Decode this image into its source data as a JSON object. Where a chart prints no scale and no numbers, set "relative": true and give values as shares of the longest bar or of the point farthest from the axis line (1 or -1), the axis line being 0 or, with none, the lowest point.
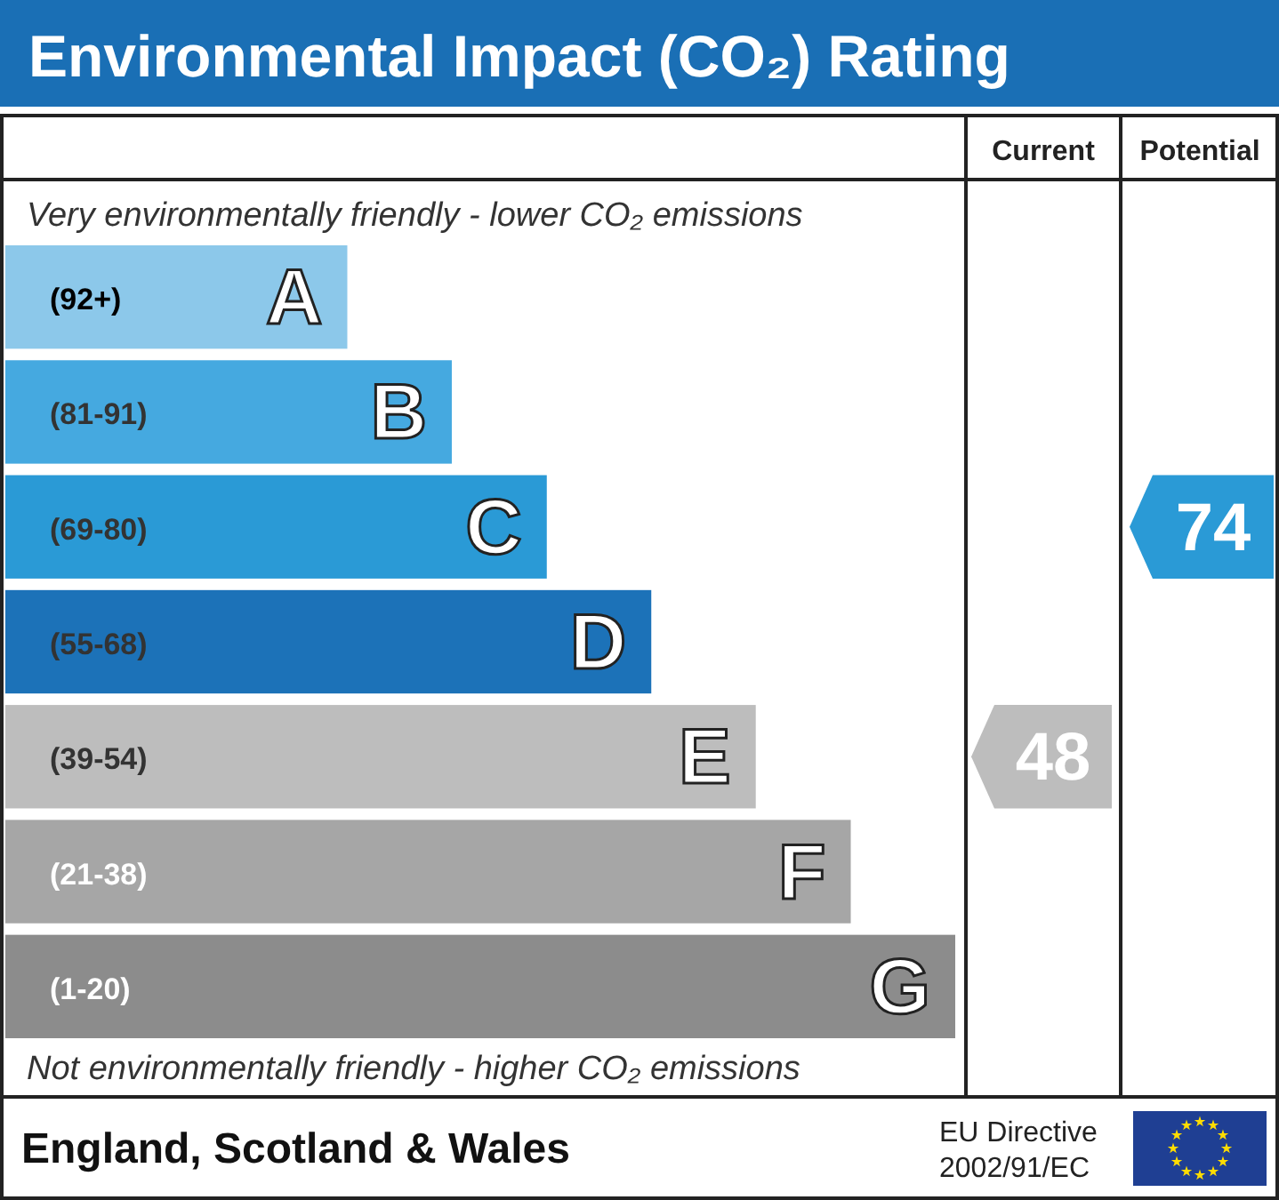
{
  "chart_data": {
    "type": "bar",
    "orientation": "horizontal",
    "relative": true,
    "title": "Environmental Impact (CO₂) Rating",
    "categories": [
      "A",
      "B",
      "C",
      "D",
      "E",
      "F",
      "G"
    ],
    "values": [
      0.36,
      0.47,
      0.57,
      0.68,
      0.79,
      0.89,
      1
    ],
    "colors": [
      "#8cc8ea",
      "#45a9e0",
      "#2a9ad6",
      "#1c72b8",
      "#bdbdbd",
      "#a6a6a6",
      "#8c8c8c"
    ],
    "annotations": [
      "Current",
      "Potential",
      "Very environmentally friendly - lower CO₂ emissions",
      "Not environmentally friendly - higher CO₂ emissions",
      "England, Scotland & Wales",
      "EU Directive",
      "2002/91/EC",
      "(92+)",
      "(81-91)",
      "(69-80)",
      "(55-68)",
      "(39-54)",
      "(21-38)",
      "(1-20)",
      "48",
      "74"
    ]
  }
}
